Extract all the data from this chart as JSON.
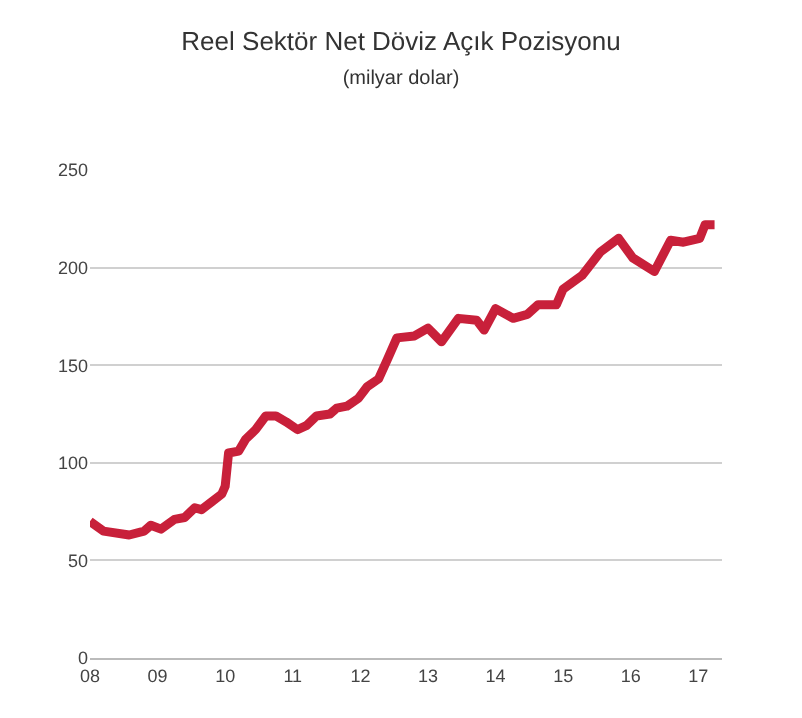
{
  "chart_data": {
    "type": "line",
    "title": "Reel Sektör Net Döviz Açık Pozisyonu",
    "subtitle": "(milyar dolar)",
    "x": [
      2008.0,
      2008.2,
      2008.58,
      2008.8,
      2008.9,
      2009.05,
      2009.25,
      2009.4,
      2009.55,
      2009.65,
      2009.8,
      2009.95,
      2010.0,
      2010.05,
      2010.2,
      2010.3,
      2010.45,
      2010.6,
      2010.75,
      2010.9,
      2011.07,
      2011.2,
      2011.35,
      2011.55,
      2011.65,
      2011.8,
      2011.97,
      2012.1,
      2012.27,
      2012.4,
      2012.54,
      2012.8,
      2013.0,
      2013.2,
      2013.45,
      2013.72,
      2013.83,
      2014.0,
      2014.26,
      2014.47,
      2014.63,
      2014.9,
      2015.0,
      2015.28,
      2015.55,
      2015.82,
      2016.03,
      2016.35,
      2016.59,
      2016.78,
      2017.02,
      2017.1,
      2017.24
    ],
    "series": [
      {
        "color": "#c8203a",
        "values": [
          70,
          65,
          63,
          65,
          68,
          66,
          71,
          72,
          77,
          76,
          80,
          84,
          88,
          105,
          106,
          112,
          117,
          124,
          124,
          121,
          117,
          119,
          124,
          125,
          128,
          129,
          133,
          139,
          143,
          153,
          164,
          165,
          169,
          162,
          174,
          173,
          168,
          179,
          174,
          176,
          181,
          181,
          189,
          196,
          208,
          215,
          205,
          198,
          214,
          213,
          215,
          222,
          222
        ]
      }
    ],
    "xlim": [
      2008,
      2017.35
    ],
    "xticks": [
      {
        "value": 2008,
        "label": "08"
      },
      {
        "value": 2009,
        "label": "09"
      },
      {
        "value": 2010,
        "label": "10"
      },
      {
        "value": 2011,
        "label": "11"
      },
      {
        "value": 2012,
        "label": "12"
      },
      {
        "value": 2013,
        "label": "13"
      },
      {
        "value": 2014,
        "label": "14"
      },
      {
        "value": 2015,
        "label": "15"
      },
      {
        "value": 2016,
        "label": "16"
      },
      {
        "value": 2017,
        "label": "17"
      }
    ],
    "ylim": [
      0,
      250
    ],
    "yticks": [
      0,
      50,
      100,
      150,
      200,
      250
    ],
    "grid": "y",
    "line_style": "solid",
    "marker": "none"
  }
}
